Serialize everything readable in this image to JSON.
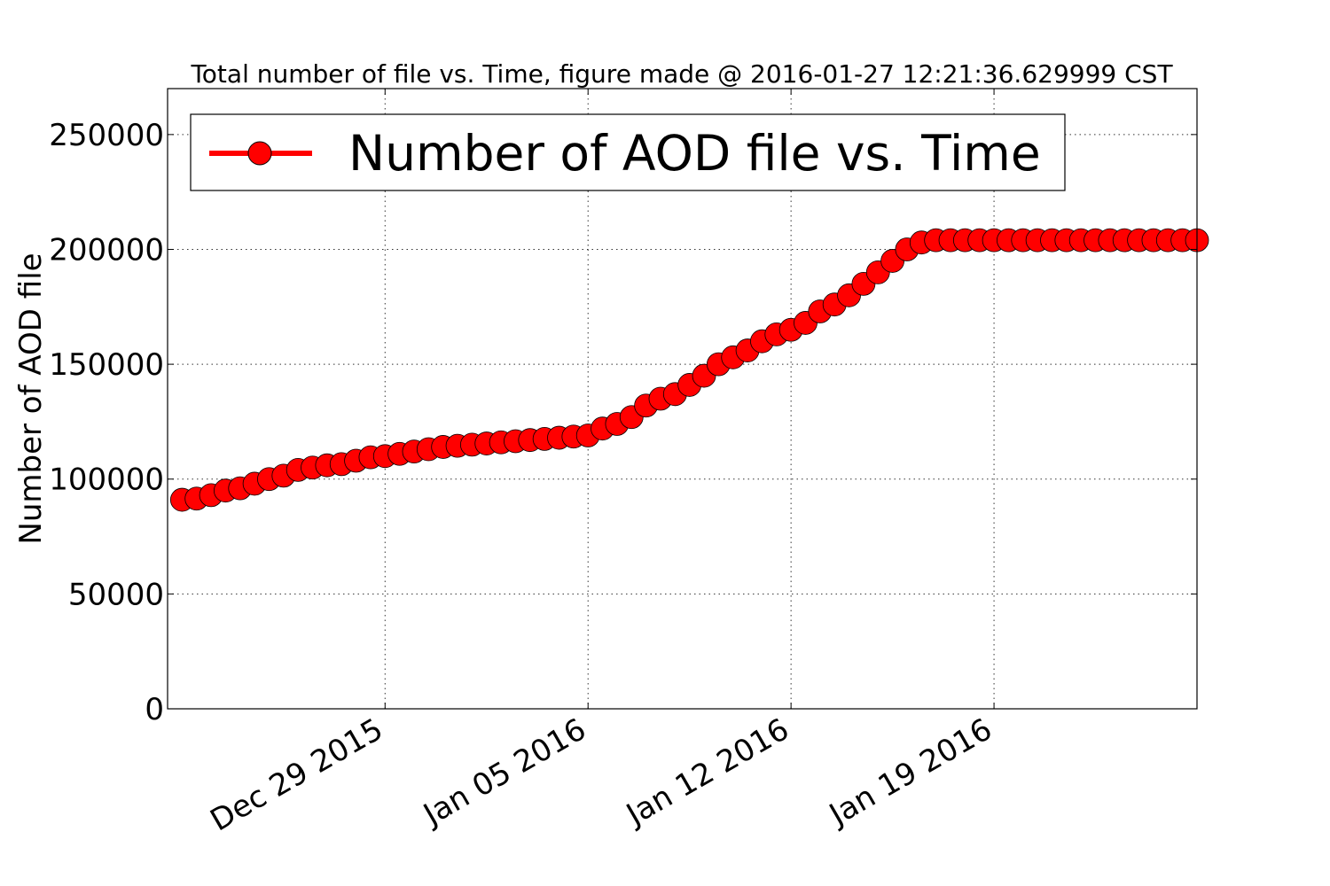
{
  "chart_data": {
    "type": "line",
    "title": "Total number of file vs. Time, figure made @ 2016-01-27 12:21:36.629999 CST",
    "xlabel": "",
    "ylabel": "Number of AOD file",
    "xlim": [
      "2015-12-21 12:00",
      "2016-01-26 00:00"
    ],
    "ylim": [
      0,
      270000
    ],
    "x_ticks": [
      {
        "date": "2015-12-29",
        "label": "Dec 29 2015"
      },
      {
        "date": "2016-01-05",
        "label": "Jan 05 2016"
      },
      {
        "date": "2016-01-12",
        "label": "Jan 12 2016"
      },
      {
        "date": "2016-01-19",
        "label": "Jan 19 2016"
      }
    ],
    "y_ticks": [
      0,
      50000,
      100000,
      150000,
      200000,
      250000
    ],
    "y_tick_labels": [
      "0",
      "50000",
      "100000",
      "150000",
      "200000",
      "250000"
    ],
    "grid": true,
    "legend_position": "top-left",
    "series": [
      {
        "name": "Number of AOD file vs. Time",
        "color": "#ff0000",
        "marker": "circle",
        "x": [
          "2015-12-22 00:00",
          "2015-12-22 12:00",
          "2015-12-23 00:00",
          "2015-12-23 12:00",
          "2015-12-24 00:00",
          "2015-12-24 12:00",
          "2015-12-25 00:00",
          "2015-12-25 12:00",
          "2015-12-26 00:00",
          "2015-12-26 12:00",
          "2015-12-27 00:00",
          "2015-12-27 12:00",
          "2015-12-28 00:00",
          "2015-12-28 12:00",
          "2015-12-29 00:00",
          "2015-12-29 12:00",
          "2015-12-30 00:00",
          "2015-12-30 12:00",
          "2015-12-31 00:00",
          "2015-12-31 12:00",
          "2016-01-01 00:00",
          "2016-01-01 12:00",
          "2016-01-02 00:00",
          "2016-01-02 12:00",
          "2016-01-03 00:00",
          "2016-01-03 12:00",
          "2016-01-04 00:00",
          "2016-01-04 12:00",
          "2016-01-05 00:00",
          "2016-01-05 12:00",
          "2016-01-06 00:00",
          "2016-01-06 12:00",
          "2016-01-07 00:00",
          "2016-01-07 12:00",
          "2016-01-08 00:00",
          "2016-01-08 12:00",
          "2016-01-09 00:00",
          "2016-01-09 12:00",
          "2016-01-10 00:00",
          "2016-01-10 12:00",
          "2016-01-11 00:00",
          "2016-01-11 12:00",
          "2016-01-12 00:00",
          "2016-01-12 12:00",
          "2016-01-13 00:00",
          "2016-01-13 12:00",
          "2016-01-14 00:00",
          "2016-01-14 12:00",
          "2016-01-15 00:00",
          "2016-01-15 12:00",
          "2016-01-16 00:00",
          "2016-01-16 12:00",
          "2016-01-17 00:00",
          "2016-01-17 12:00",
          "2016-01-18 00:00",
          "2016-01-18 12:00",
          "2016-01-19 00:00",
          "2016-01-19 12:00",
          "2016-01-20 00:00",
          "2016-01-20 12:00",
          "2016-01-21 00:00",
          "2016-01-21 12:00",
          "2016-01-22 00:00",
          "2016-01-22 12:00",
          "2016-01-23 00:00",
          "2016-01-23 12:00",
          "2016-01-24 00:00",
          "2016-01-24 12:00",
          "2016-01-25 00:00",
          "2016-01-25 12:00",
          "2016-01-26 00:00"
        ],
        "y": [
          91000,
          91500,
          93000,
          95000,
          96000,
          98000,
          100000,
          101500,
          104000,
          105000,
          106000,
          106500,
          108000,
          109500,
          110000,
          111000,
          112000,
          113000,
          114000,
          114500,
          115000,
          115500,
          116000,
          116500,
          117000,
          117500,
          118000,
          118500,
          119000,
          122000,
          124000,
          127000,
          132000,
          135000,
          137000,
          141000,
          145000,
          150000,
          153000,
          156000,
          160000,
          163000,
          165000,
          168000,
          173000,
          176000,
          180000,
          185000,
          190000,
          195000,
          200000,
          203000,
          204000,
          204000,
          204000,
          204000,
          204000,
          204000,
          204000,
          204000,
          204000,
          204000,
          204000,
          204000,
          204000,
          204000,
          204000,
          204000,
          204000,
          204000,
          204000
        ]
      }
    ]
  }
}
